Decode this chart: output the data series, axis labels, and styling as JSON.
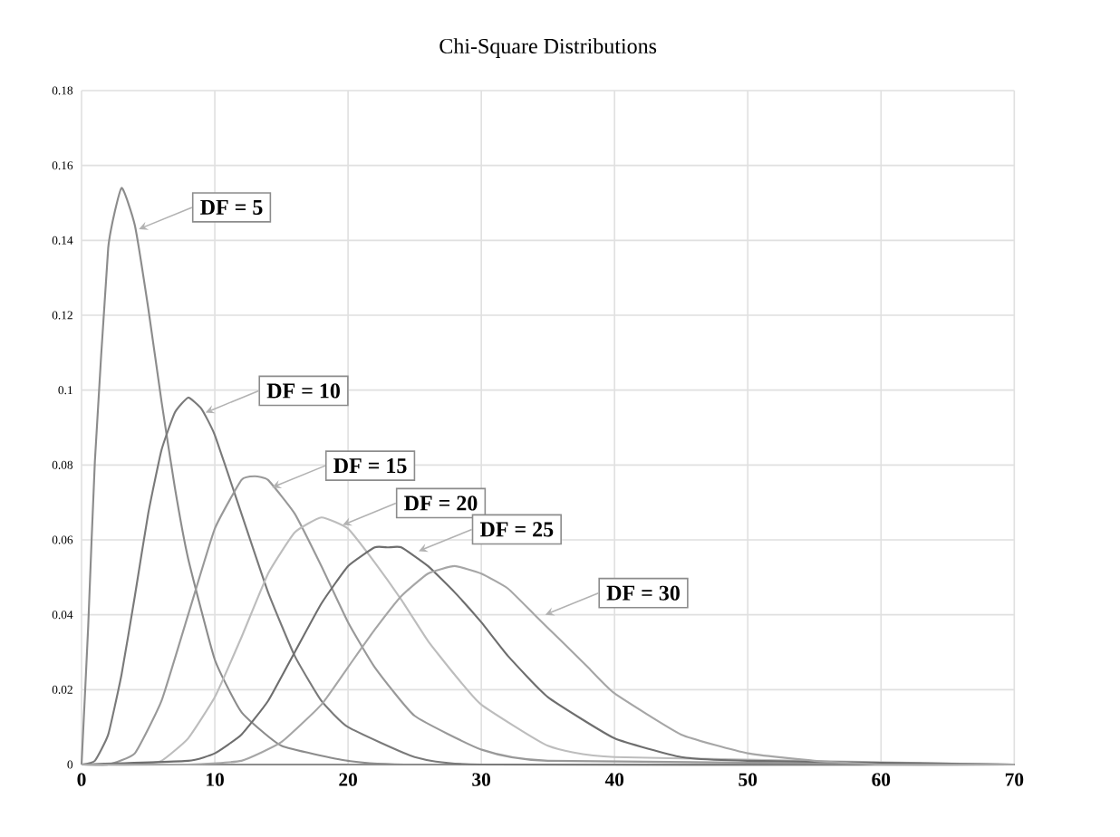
{
  "chart_data": {
    "type": "line",
    "title": "Chi-Square Distributions",
    "series": [
      {
        "color": "#8c8c8c",
        "x": [
          0,
          0.5,
          1,
          2,
          3,
          4,
          5,
          6,
          7,
          8,
          10,
          12,
          15,
          20,
          25,
          70
        ],
        "values": [
          0,
          0.037,
          0.081,
          0.138,
          0.154,
          0.144,
          0.122,
          0.097,
          0.074,
          0.055,
          0.028,
          0.014,
          0.005,
          0.001,
          0,
          0
        ]
      },
      {
        "color": "#7a7a7a",
        "x": [
          0,
          1,
          2,
          3,
          4,
          5,
          6,
          7,
          8,
          9,
          10,
          12,
          14,
          16,
          18,
          20,
          25,
          30,
          70
        ],
        "values": [
          0,
          0.001,
          0.008,
          0.024,
          0.045,
          0.067,
          0.084,
          0.094,
          0.098,
          0.095,
          0.088,
          0.067,
          0.046,
          0.029,
          0.017,
          0.01,
          0.002,
          0,
          0
        ]
      },
      {
        "color": "#999999",
        "x": [
          0,
          2,
          4,
          6,
          8,
          10,
          12,
          13,
          14,
          16,
          18,
          20,
          22,
          25,
          30,
          35,
          70
        ],
        "values": [
          0,
          0,
          0.003,
          0.017,
          0.04,
          0.063,
          0.076,
          0.077,
          0.076,
          0.067,
          0.053,
          0.038,
          0.026,
          0.013,
          0.004,
          0.001,
          0
        ]
      },
      {
        "color": "#bdbdbd",
        "x": [
          0,
          4,
          6,
          8,
          10,
          12,
          14,
          16,
          18,
          20,
          22,
          24,
          26,
          28,
          30,
          35,
          40,
          70
        ],
        "values": [
          0,
          0,
          0.001,
          0.007,
          0.018,
          0.034,
          0.051,
          0.062,
          0.066,
          0.063,
          0.054,
          0.044,
          0.033,
          0.024,
          0.016,
          0.005,
          0.002,
          0
        ]
      },
      {
        "color": "#6e6e6e",
        "x": [
          0,
          8,
          10,
          12,
          14,
          16,
          18,
          20,
          22,
          23,
          24,
          26,
          28,
          30,
          32,
          35,
          40,
          45,
          50,
          70
        ],
        "values": [
          0,
          0.001,
          0.003,
          0.008,
          0.017,
          0.03,
          0.043,
          0.053,
          0.058,
          0.058,
          0.058,
          0.053,
          0.046,
          0.038,
          0.029,
          0.018,
          0.007,
          0.002,
          0.001,
          0
        ]
      },
      {
        "color": "#a6a6a6",
        "x": [
          0,
          8,
          12,
          15,
          18,
          20,
          22,
          24,
          26,
          28,
          30,
          32,
          34,
          36,
          38,
          40,
          45,
          50,
          55,
          60,
          70
        ],
        "values": [
          0,
          0,
          0.001,
          0.006,
          0.016,
          0.026,
          0.036,
          0.045,
          0.051,
          0.053,
          0.051,
          0.047,
          0.04,
          0.033,
          0.026,
          0.019,
          0.008,
          0.003,
          0.001,
          0,
          0
        ]
      }
    ],
    "annotations": [
      {
        "text": "DF = 5",
        "x": 4.3,
        "y": 0.143
      },
      {
        "text": "DF = 10",
        "x": 9.3,
        "y": 0.094
      },
      {
        "text": "DF = 15",
        "x": 14.3,
        "y": 0.074
      },
      {
        "text": "DF = 20",
        "x": 19.6,
        "y": 0.064
      },
      {
        "text": "DF = 25",
        "x": 25.3,
        "y": 0.057
      },
      {
        "text": "DF = 30",
        "x": 34.8,
        "y": 0.04
      }
    ],
    "xlim": [
      0,
      70
    ],
    "ylim": [
      0,
      0.18
    ],
    "xticks": [
      0,
      10,
      20,
      30,
      40,
      50,
      60,
      70
    ],
    "yticks": [
      0,
      0.02,
      0.04,
      0.06,
      0.08,
      0.1,
      0.12,
      0.14,
      0.16,
      0.18
    ],
    "grid": true,
    "marker": "none",
    "line_style": "solid"
  }
}
